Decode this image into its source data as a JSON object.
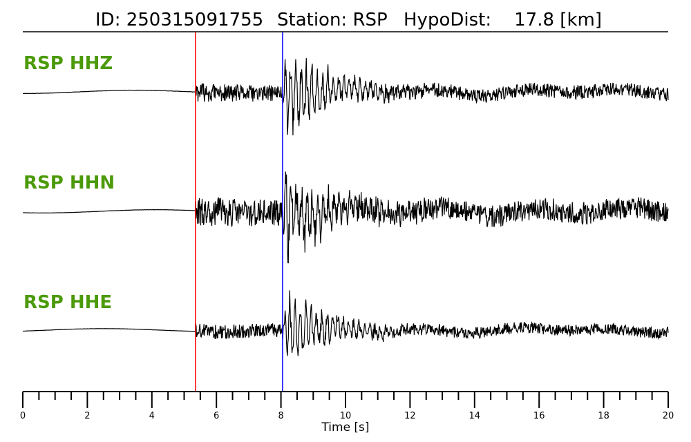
{
  "header": {
    "id_text": "ID: 250315091755",
    "station_text": "Station: RSP",
    "hypodist_text": "HypoDist:    17.8 [km]"
  },
  "chart_data": {
    "type": "line",
    "xlabel": "Time [s]",
    "xlim": [
      0,
      20
    ],
    "x_major_ticks": [
      0,
      2,
      4,
      6,
      8,
      10,
      12,
      14,
      16,
      18,
      20
    ],
    "x_minor_tick_step": 0.5,
    "label_color": "#4b9a0a",
    "trace_color": "#000000",
    "picks": [
      {
        "phase": "P",
        "time": 5.35,
        "color": "#ff0000"
      },
      {
        "phase": "S",
        "time": 8.05,
        "color": "#0000ff"
      }
    ],
    "series": [
      {
        "name": "RSP HHZ",
        "pre_noise": 0.04,
        "p_amp": 0.22,
        "s_amp": 1.0,
        "coda_amp": 0.06,
        "seed": 11
      },
      {
        "name": "RSP HHN",
        "pre_noise": 0.03,
        "p_amp": 0.36,
        "s_amp": 0.95,
        "coda_amp": 0.09,
        "seed": 23
      },
      {
        "name": "RSP HHE",
        "pre_noise": 0.03,
        "p_amp": 0.2,
        "s_amp": 0.95,
        "coda_amp": 0.05,
        "seed": 37
      }
    ]
  }
}
